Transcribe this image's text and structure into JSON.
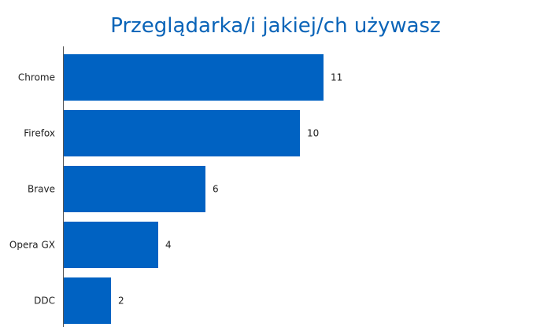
{
  "chart_data": {
    "type": "bar",
    "orientation": "horizontal",
    "title": "Przeglądarka/i jakiej/ch używasz",
    "categories": [
      "Chrome",
      "Firefox",
      "Brave",
      "Opera GX",
      "DDC"
    ],
    "values": [
      11,
      10,
      6,
      4,
      2
    ],
    "xlabel": "",
    "ylabel": "",
    "xlim": [
      0,
      18
    ],
    "grid": false,
    "legend": "none",
    "bar_color": "#0062c2",
    "title_color": "#0a64b8"
  }
}
